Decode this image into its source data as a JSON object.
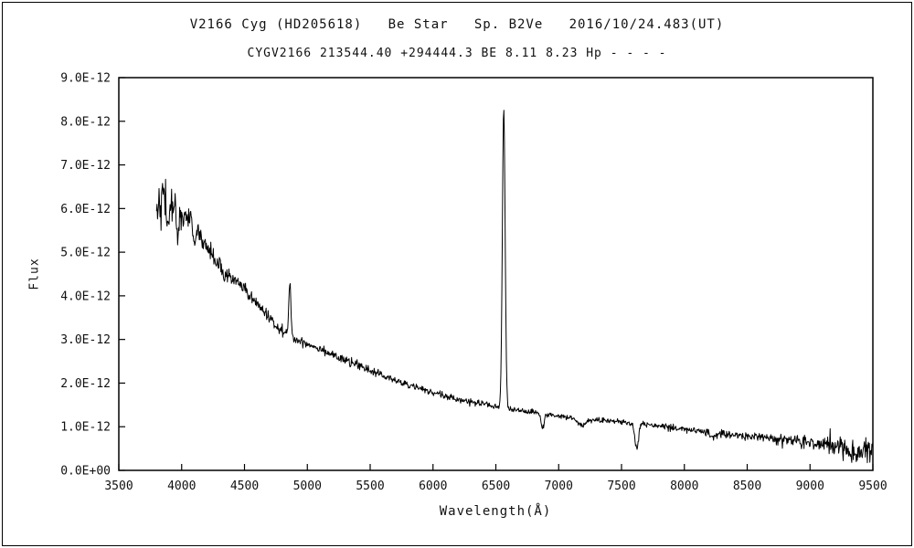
{
  "titles": {
    "line1": "V2166 Cyg (HD205618)   Be Star   Sp. B2Ve   2016/10/24.483(UT)",
    "line2": "CYGV2166 213544.40 +294444.3 BE 8.11 8.23 Hp - - - -"
  },
  "colors": {
    "line": "#000000",
    "axis": "#000000",
    "background": "#ffffff"
  },
  "chart_data": {
    "type": "line",
    "title": "V2166 Cyg (HD205618) Be Star Sp. B2Ve 2016/10/24.483(UT)",
    "subtitle": "CYGV2166 213544.40 +294444.3 BE 8.11 8.23 Hp - - - -",
    "xlabel": "Wavelength(Å)",
    "ylabel": "Flux",
    "grid": false,
    "legend": "none",
    "xlim": [
      3500,
      9500
    ],
    "ylim": [
      0,
      9e-12
    ],
    "ylim_1e12": [
      0,
      9
    ],
    "x_ticks": [
      3500,
      4000,
      4500,
      5000,
      5500,
      6000,
      6500,
      7000,
      7500,
      8000,
      8500,
      9000,
      9500
    ],
    "y_tick_values_1e12": [
      0,
      1,
      2,
      3,
      4,
      5,
      6,
      7,
      8,
      9
    ],
    "y_tick_labels": [
      "0.0E+00",
      "1.0E-12",
      "2.0E-12",
      "3.0E-12",
      "4.0E-12",
      "5.0E-12",
      "6.0E-12",
      "7.0E-12",
      "8.0E-12",
      "9.0E-12"
    ],
    "x_data_range": [
      3800,
      9500
    ],
    "sample_step_angstrom": 4,
    "continuum_1e12": [
      [
        3800,
        6.15
      ],
      [
        3850,
        6.25
      ],
      [
        3900,
        6.05
      ],
      [
        3950,
        5.95
      ],
      [
        4000,
        5.85
      ],
      [
        4050,
        5.75
      ],
      [
        4100,
        5.6
      ],
      [
        4150,
        5.35
      ],
      [
        4200,
        5.1
      ],
      [
        4300,
        4.7
      ],
      [
        4400,
        4.4
      ],
      [
        4500,
        4.15
      ],
      [
        4600,
        3.8
      ],
      [
        4700,
        3.5
      ],
      [
        4800,
        3.2
      ],
      [
        4900,
        3.0
      ],
      [
        5000,
        2.9
      ],
      [
        5100,
        2.8
      ],
      [
        5200,
        2.65
      ],
      [
        5300,
        2.52
      ],
      [
        5400,
        2.4
      ],
      [
        5500,
        2.3
      ],
      [
        5600,
        2.17
      ],
      [
        5700,
        2.06
      ],
      [
        5800,
        1.96
      ],
      [
        5900,
        1.87
      ],
      [
        6000,
        1.78
      ],
      [
        6100,
        1.7
      ],
      [
        6200,
        1.63
      ],
      [
        6300,
        1.57
      ],
      [
        6400,
        1.51
      ],
      [
        6500,
        1.46
      ],
      [
        6600,
        1.41
      ],
      [
        6700,
        1.36
      ],
      [
        6800,
        1.32
      ],
      [
        6900,
        1.27
      ],
      [
        7000,
        1.24
      ],
      [
        7100,
        1.21
      ],
      [
        7300,
        1.16
      ],
      [
        7500,
        1.11
      ],
      [
        7700,
        1.05
      ],
      [
        7800,
        1.01
      ],
      [
        7900,
        0.98
      ],
      [
        8000,
        0.95
      ],
      [
        8100,
        0.91
      ],
      [
        8200,
        0.87
      ],
      [
        8300,
        0.84
      ],
      [
        8400,
        0.81
      ],
      [
        8500,
        0.79
      ],
      [
        8600,
        0.76
      ],
      [
        8700,
        0.73
      ],
      [
        8800,
        0.7
      ],
      [
        8900,
        0.66
      ],
      [
        9000,
        0.62
      ],
      [
        9100,
        0.6
      ],
      [
        9200,
        0.56
      ],
      [
        9300,
        0.52
      ],
      [
        9400,
        0.5
      ],
      [
        9500,
        0.45
      ]
    ],
    "emission_lines": [
      {
        "name": "H-alpha",
        "center": 6563,
        "amplitude_1e12": 6.85,
        "sigma": 11,
        "peak_flux_label": "8.3E-12"
      },
      {
        "name": "H-beta",
        "center": 4861,
        "amplitude_1e12": 1.25,
        "sigma": 8,
        "peak_flux_label": "4.3E-12"
      }
    ],
    "absorption_features": [
      {
        "name": "H-gamma",
        "center": 4340,
        "depth_1e12": 0.28,
        "sigma": 8
      },
      {
        "name": "H-delta",
        "center": 4101,
        "depth_1e12": 0.32,
        "sigma": 8
      },
      {
        "name": "H-epsilon",
        "center": 3970,
        "depth_1e12": 0.5,
        "sigma": 7
      },
      {
        "name": "H8",
        "center": 3889,
        "depth_1e12": 0.5,
        "sigma": 7
      },
      {
        "name": "telluric-O2-B",
        "center": 6872,
        "depth_1e12": 0.3,
        "sigma": 12
      },
      {
        "name": "telluric-H2O-7200",
        "center": 7190,
        "depth_1e12": 0.15,
        "sigma": 35
      },
      {
        "name": "telluric-O2-A",
        "center": 7620,
        "depth_1e12": 0.6,
        "sigma": 14
      },
      {
        "name": "telluric-H2O-8200",
        "center": 8230,
        "depth_1e12": 0.08,
        "sigma": 30
      },
      {
        "name": "telluric-H2O-9350",
        "center": 9350,
        "depth_1e12": 0.1,
        "sigma": 40
      }
    ],
    "noise_sigma_1e12": [
      [
        3800,
        0.22
      ],
      [
        3900,
        0.22
      ],
      [
        4000,
        0.16
      ],
      [
        4100,
        0.14
      ],
      [
        4300,
        0.09
      ],
      [
        4600,
        0.07
      ],
      [
        5000,
        0.05
      ],
      [
        5500,
        0.045
      ],
      [
        6000,
        0.04
      ],
      [
        6500,
        0.035
      ],
      [
        7000,
        0.03
      ],
      [
        7500,
        0.03
      ],
      [
        8000,
        0.04
      ],
      [
        8500,
        0.05
      ],
      [
        8900,
        0.07
      ],
      [
        9100,
        0.1
      ],
      [
        9300,
        0.14
      ],
      [
        9500,
        0.18
      ]
    ]
  }
}
